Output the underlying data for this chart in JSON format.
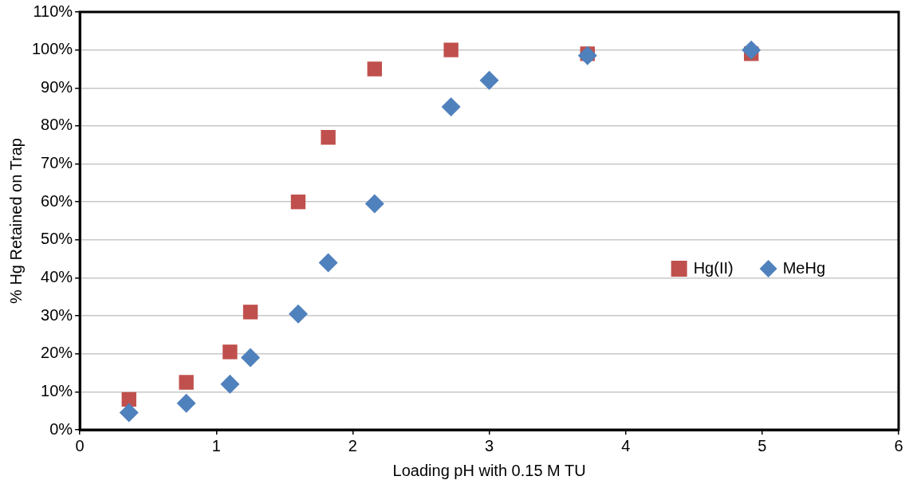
{
  "chart_data": {
    "type": "scatter",
    "xlabel": "Loading pH with 0.15 M TU",
    "ylabel": "% Hg Retained on Trap",
    "series": [
      {
        "name": "Hg(II)",
        "color": "#c0504d",
        "marker": "square",
        "x": [
          0.36,
          0.78,
          1.1,
          1.25,
          1.6,
          1.82,
          2.16,
          2.72,
          3.72,
          4.92
        ],
        "values": [
          8,
          12.5,
          20.5,
          31,
          60,
          77,
          95,
          100,
          99,
          99
        ]
      },
      {
        "name": "MeHg",
        "color": "#4f81bd",
        "marker": "diamond",
        "x": [
          0.36,
          0.78,
          1.1,
          1.25,
          1.6,
          1.82,
          2.16,
          2.72,
          3.0,
          3.72,
          4.92
        ],
        "values": [
          4.5,
          7,
          12,
          19,
          30.5,
          44,
          59.5,
          85,
          92,
          98.5,
          100
        ]
      }
    ],
    "xlim": [
      0,
      6
    ],
    "xticks": [
      0,
      1,
      2,
      3,
      4,
      5,
      6
    ],
    "ylim": [
      0,
      110
    ],
    "yticks": [
      {
        "value": 0,
        "label": "0%"
      },
      {
        "value": 10,
        "label": "10%"
      },
      {
        "value": 20,
        "label": "20%"
      },
      {
        "value": 30,
        "label": "30%"
      },
      {
        "value": 40,
        "label": "40%"
      },
      {
        "value": 50,
        "label": "50%"
      },
      {
        "value": 60,
        "label": "60%"
      },
      {
        "value": 70,
        "label": "70%"
      },
      {
        "value": 80,
        "label": "80%"
      },
      {
        "value": 90,
        "label": "90%"
      },
      {
        "value": 100,
        "label": "100%"
      },
      {
        "value": 110,
        "label": "110%"
      }
    ],
    "grid": "y",
    "legend": "right"
  }
}
